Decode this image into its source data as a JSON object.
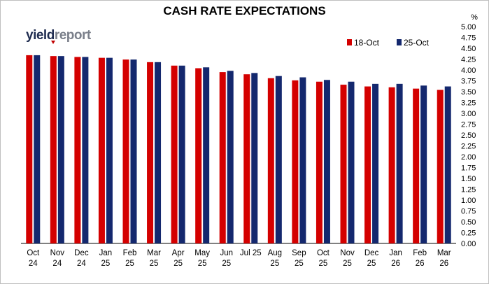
{
  "chart_data": {
    "type": "bar",
    "title": "CASH RATE EXPECTATIONS",
    "ylabel": "%",
    "ylim": [
      0,
      5
    ],
    "yticks": [
      "0.00",
      "0.25",
      "0.50",
      "0.75",
      "1.00",
      "1.25",
      "1.50",
      "1.75",
      "2.00",
      "2.25",
      "2.50",
      "2.75",
      "3.00",
      "3.25",
      "3.50",
      "3.75",
      "4.00",
      "4.25",
      "4.50",
      "4.75",
      "5.00"
    ],
    "y_axis_side": "right",
    "legend_position": "top-right",
    "categories": [
      [
        "Oct",
        "24"
      ],
      [
        "Nov",
        "24"
      ],
      [
        "Dec",
        "24"
      ],
      [
        "Jan",
        "25"
      ],
      [
        "Feb",
        "25"
      ],
      [
        "Mar",
        "25"
      ],
      [
        "Apr",
        "25"
      ],
      [
        "May",
        "25"
      ],
      [
        "Jun",
        "25"
      ],
      [
        "Jul 25",
        ""
      ],
      [
        "Aug",
        "25"
      ],
      [
        "Sep",
        "25"
      ],
      [
        "Oct",
        "25"
      ],
      [
        "Nov",
        "25"
      ],
      [
        "Dec",
        "25"
      ],
      [
        "Jan",
        "26"
      ],
      [
        "Feb",
        "26"
      ],
      [
        "Mar",
        "26"
      ]
    ],
    "series": [
      {
        "name": "18-Oct",
        "color": "#d40000",
        "values": [
          4.34,
          4.32,
          4.3,
          4.28,
          4.24,
          4.18,
          4.1,
          4.04,
          3.95,
          3.9,
          3.81,
          3.76,
          3.73,
          3.66,
          3.62,
          3.6,
          3.57,
          3.54
        ]
      },
      {
        "name": "25-Oct",
        "color": "#14286e",
        "values": [
          4.34,
          4.32,
          4.3,
          4.28,
          4.24,
          4.18,
          4.1,
          4.06,
          3.98,
          3.93,
          3.86,
          3.83,
          3.77,
          3.73,
          3.68,
          3.68,
          3.64,
          3.62
        ]
      }
    ]
  },
  "logo": {
    "part1": "yield",
    "part2": "report"
  }
}
